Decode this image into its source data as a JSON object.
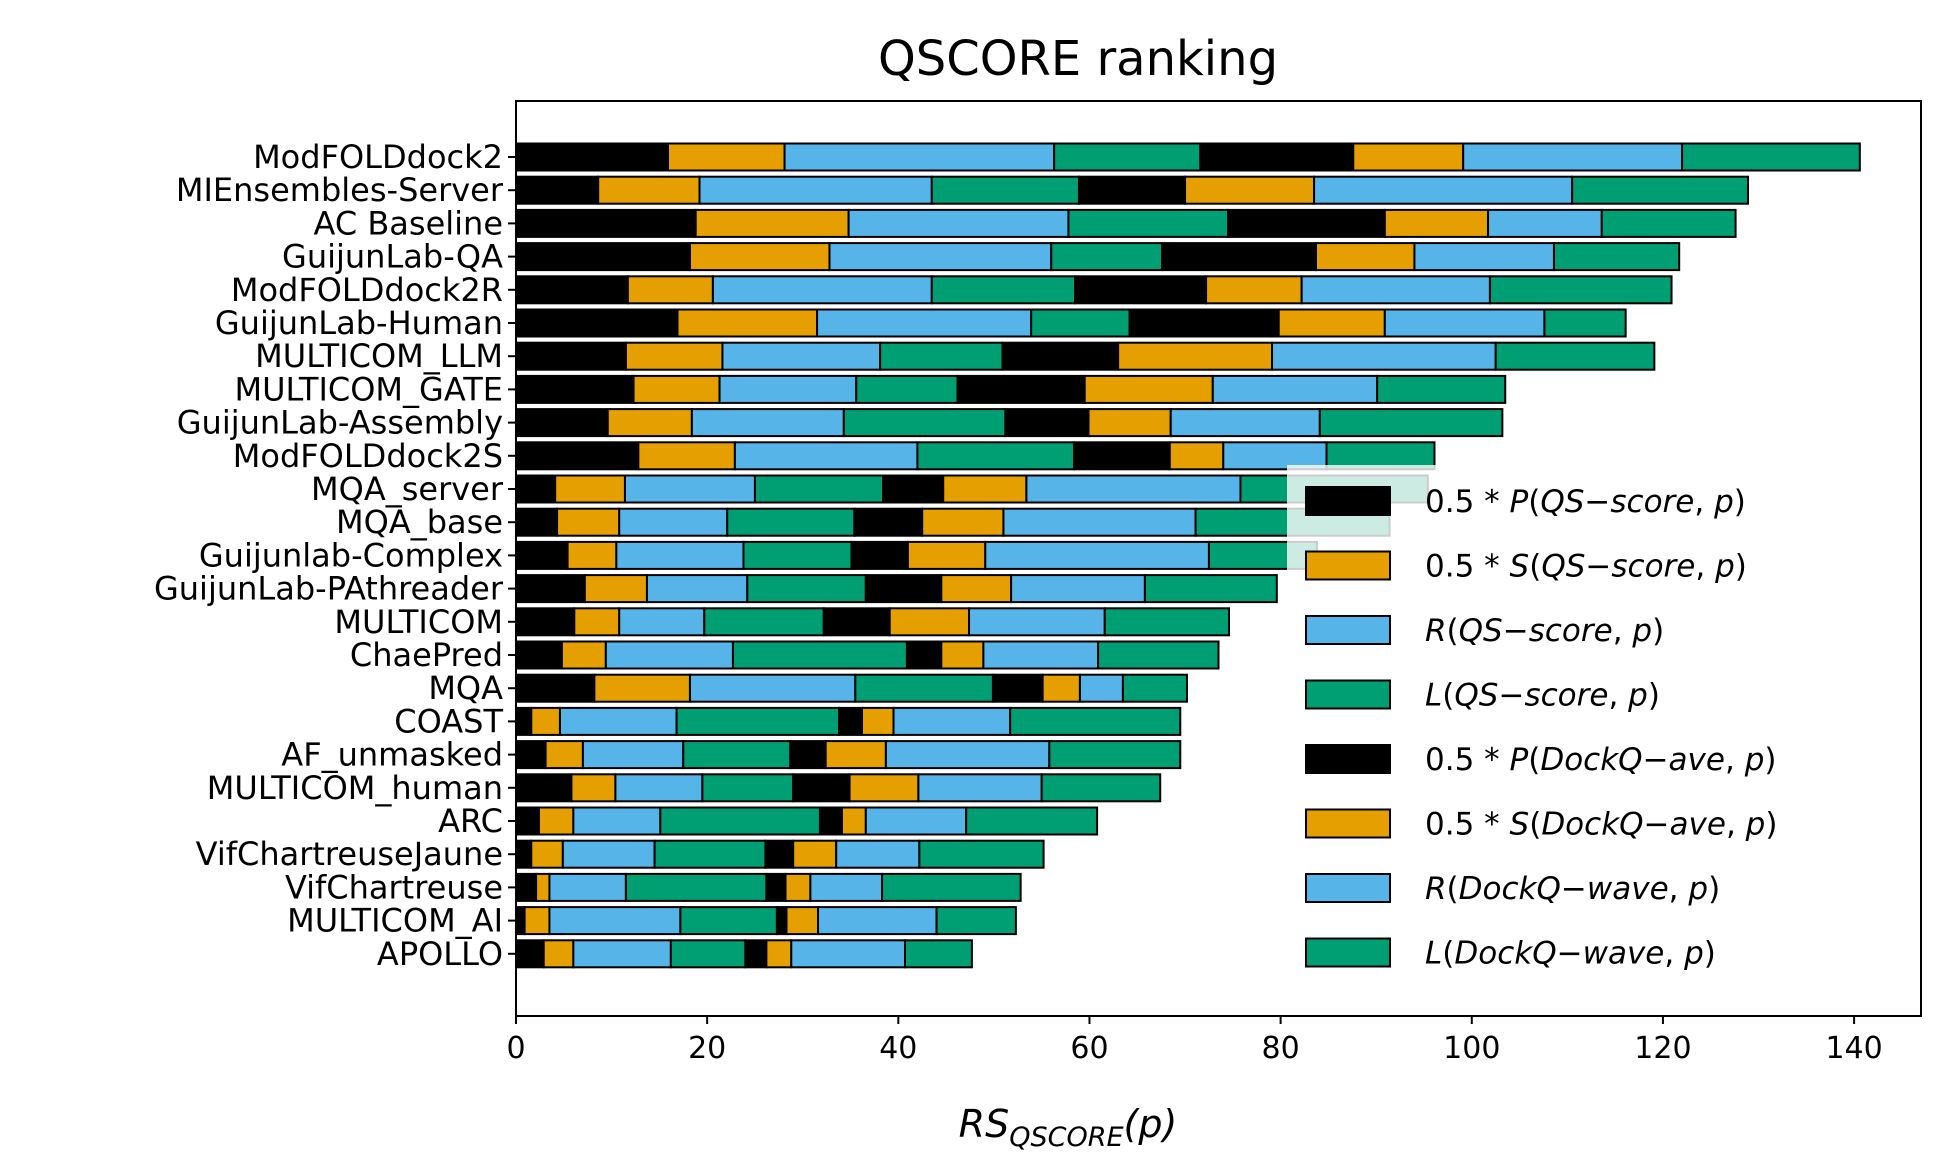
{
  "chart_data": {
    "type": "bar",
    "orientation": "horizontal",
    "stacked": true,
    "title": "QSCORE ranking",
    "xlabel": {
      "main": "RS",
      "sub": "QSCORE",
      "tail": "(p)"
    },
    "ylabel": "",
    "xlim": [
      0,
      147
    ],
    "xticks": [
      0,
      20,
      40,
      60,
      80,
      100,
      120,
      140
    ],
    "grid": false,
    "legend_position": "right",
    "categories": [
      "ModFOLDdock2",
      "MIEnsembles-Server",
      "AC Baseline",
      "GuijunLab-QA",
      "ModFOLDdock2R",
      "GuijunLab-Human",
      "MULTICOM_LLM",
      "MULTICOM_GATE",
      "GuijunLab-Assembly",
      "ModFOLDdock2S",
      "MQA_server",
      "MQA_base",
      "Guijunlab-Complex",
      "GuijunLab-PAthreader",
      "MULTICOM",
      "ChaePred",
      "MQA",
      "COAST",
      "AF_unmasked",
      "MULTICOM_human",
      "ARC",
      "VifChartreuseJaune",
      "VifChartreuse",
      "MULTICOM_AI",
      "APOLLO"
    ],
    "series": [
      {
        "name": [
          "0.5 * ",
          "P",
          "(",
          "QS",
          "−",
          "score",
          ", ",
          "p",
          ")"
        ],
        "color": "#000000",
        "values": [
          15.9,
          8.6,
          18.8,
          18.2,
          11.7,
          16.9,
          11.5,
          12.3,
          9.6,
          12.8,
          4.1,
          4.3,
          5.4,
          7.2,
          6.1,
          4.8,
          8.2,
          1.6,
          3.1,
          5.8,
          2.4,
          1.6,
          2.1,
          0.9,
          2.9
        ]
      },
      {
        "name": [
          "0.5 * ",
          "S",
          "(",
          "QS",
          "−",
          "score",
          ", ",
          "p",
          ")"
        ],
        "color": "#E69F00",
        "values": [
          12.2,
          10.6,
          16.0,
          14.6,
          8.9,
          14.6,
          10.1,
          9.0,
          8.8,
          10.1,
          7.3,
          6.5,
          5.1,
          6.5,
          4.7,
          4.6,
          10.0,
          3.0,
          3.9,
          4.6,
          3.6,
          3.3,
          1.4,
          2.6,
          3.1
        ]
      },
      {
        "name": [
          "R",
          "(",
          "QS",
          "−",
          "score",
          ", ",
          "p",
          ")"
        ],
        "color": "#56B4E9",
        "values": [
          28.2,
          24.3,
          23.0,
          23.2,
          22.9,
          22.4,
          16.5,
          14.3,
          15.9,
          19.1,
          13.6,
          11.3,
          13.3,
          10.5,
          8.9,
          13.3,
          17.3,
          12.2,
          10.5,
          9.1,
          9.1,
          9.6,
          8.0,
          13.7,
          10.2
        ]
      },
      {
        "name": [
          "L",
          "(",
          "QS",
          "−",
          "score",
          ", ",
          "p",
          ")"
        ],
        "color": "#009E73",
        "values": [
          15.3,
          15.4,
          16.7,
          11.6,
          15.0,
          10.3,
          12.8,
          10.6,
          16.9,
          16.4,
          13.4,
          13.3,
          11.3,
          12.4,
          12.5,
          18.2,
          14.4,
          17.0,
          11.2,
          9.5,
          16.7,
          11.6,
          14.7,
          10.1,
          7.8
        ]
      },
      {
        "name": [
          "0.5 * ",
          "P",
          "(",
          "DockQ",
          "−",
          "ave",
          ", ",
          "p",
          ")"
        ],
        "color": "#000000",
        "values": [
          16.0,
          11.1,
          16.4,
          16.1,
          13.7,
          15.6,
          12.1,
          13.3,
          8.7,
          10.0,
          6.3,
          7.1,
          5.9,
          7.9,
          6.9,
          3.6,
          5.2,
          2.4,
          3.7,
          5.9,
          2.3,
          2.9,
          2.0,
          1.0,
          2.2
        ]
      },
      {
        "name": [
          "0.5 * ",
          "S",
          "(",
          "DockQ",
          "−",
          "ave",
          ", ",
          "p",
          ")"
        ],
        "color": "#E69F00",
        "values": [
          11.5,
          13.5,
          10.8,
          10.3,
          10.0,
          11.1,
          16.1,
          13.4,
          8.6,
          5.6,
          8.7,
          8.5,
          8.1,
          7.3,
          8.3,
          4.4,
          3.9,
          3.3,
          6.3,
          7.2,
          2.5,
          4.5,
          2.6,
          3.3,
          2.6
        ]
      },
      {
        "name": [
          "R",
          "(",
          "DockQ",
          "−",
          "wave",
          ", ",
          "p",
          ")"
        ],
        "color": "#56B4E9",
        "values": [
          22.9,
          27.0,
          11.9,
          14.6,
          19.7,
          16.7,
          23.4,
          17.2,
          15.6,
          10.8,
          22.4,
          20.1,
          23.4,
          14.0,
          14.2,
          12.0,
          4.5,
          12.2,
          17.1,
          12.9,
          10.5,
          8.7,
          7.5,
          12.4,
          11.9
        ]
      },
      {
        "name": [
          "L",
          "(",
          "DockQ",
          "−",
          "wave",
          ", ",
          "p",
          ")"
        ],
        "color": "#009E73",
        "values": [
          18.6,
          18.4,
          14.0,
          13.1,
          19.0,
          8.5,
          16.6,
          13.4,
          19.1,
          11.3,
          19.6,
          20.3,
          11.3,
          13.8,
          13.0,
          12.6,
          6.7,
          17.8,
          13.7,
          12.4,
          13.7,
          13.0,
          14.5,
          8.3,
          7.0
        ]
      }
    ]
  }
}
